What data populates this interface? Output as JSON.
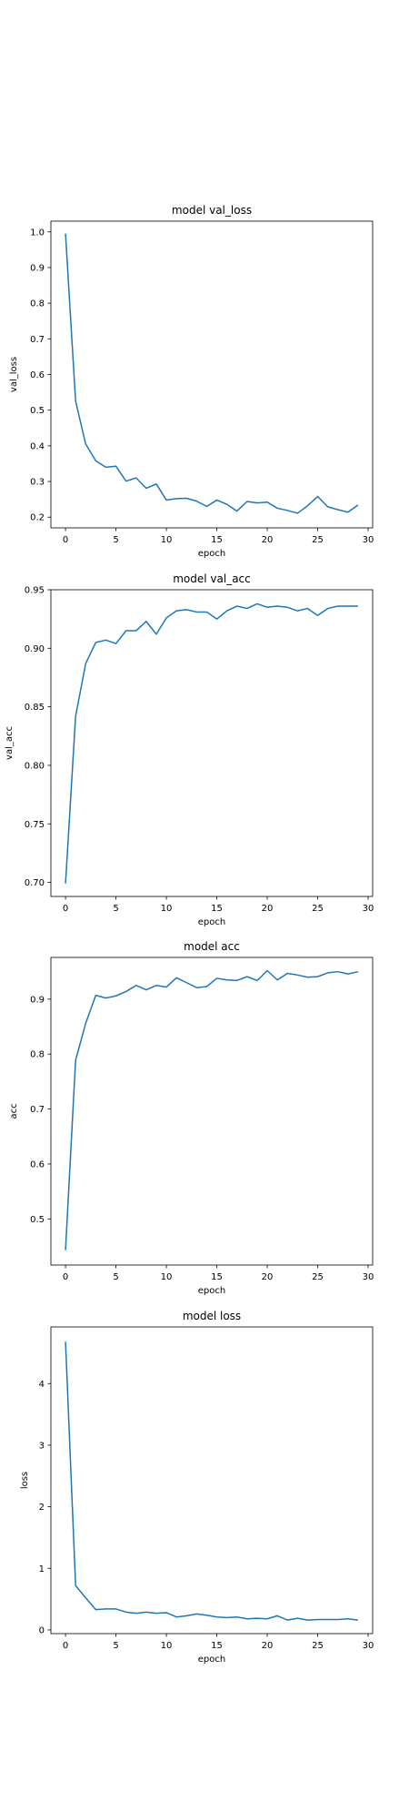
{
  "figure": {
    "background": "#ffffff",
    "line_color": "#1f77b4"
  },
  "chart_data": [
    {
      "type": "line",
      "title": "model val_loss",
      "xlabel": "epoch",
      "ylabel": "val_loss",
      "xlim": [
        -1.45,
        30.45
      ],
      "ylim": [
        0.17,
        1.03
      ],
      "xticks": [
        0,
        5,
        10,
        15,
        20,
        25,
        30
      ],
      "xtick_labels": [
        "0",
        "5",
        "10",
        "15",
        "20",
        "25",
        "30"
      ],
      "yticks": [
        0.2,
        0.3,
        0.4,
        0.5,
        0.6,
        0.7,
        0.8,
        0.9,
        1.0
      ],
      "ytick_labels": [
        "0.2",
        "0.3",
        "0.4",
        "0.5",
        "0.6",
        "0.7",
        "0.8",
        "0.9",
        "1.0"
      ],
      "grid": false,
      "series": [
        {
          "x": [
            0,
            1,
            2,
            3,
            4,
            5,
            6,
            7,
            8,
            9,
            10,
            11,
            12,
            13,
            14,
            15,
            16,
            17,
            18,
            19,
            20,
            21,
            22,
            23,
            24,
            25,
            26,
            27,
            28,
            29
          ],
          "y": [
            0.995,
            0.525,
            0.405,
            0.358,
            0.34,
            0.343,
            0.301,
            0.31,
            0.281,
            0.293,
            0.248,
            0.252,
            0.253,
            0.245,
            0.23,
            0.248,
            0.236,
            0.217,
            0.244,
            0.24,
            0.242,
            0.225,
            0.219,
            0.211,
            0.232,
            0.258,
            0.229,
            0.221,
            0.214,
            0.234
          ]
        }
      ]
    },
    {
      "type": "line",
      "title": "model val_acc",
      "xlabel": "epoch",
      "ylabel": "val_acc",
      "xlim": [
        -1.45,
        30.45
      ],
      "ylim": [
        0.688,
        0.95
      ],
      "xticks": [
        0,
        5,
        10,
        15,
        20,
        25,
        30
      ],
      "xtick_labels": [
        "0",
        "5",
        "10",
        "15",
        "20",
        "25",
        "30"
      ],
      "yticks": [
        0.7,
        0.75,
        0.8,
        0.85,
        0.9,
        0.95
      ],
      "ytick_labels": [
        "0.70",
        "0.75",
        "0.80",
        "0.85",
        "0.90",
        "0.95"
      ],
      "grid": false,
      "series": [
        {
          "x": [
            0,
            1,
            2,
            3,
            4,
            5,
            6,
            7,
            8,
            9,
            10,
            11,
            12,
            13,
            14,
            15,
            16,
            17,
            18,
            19,
            20,
            21,
            22,
            23,
            24,
            25,
            26,
            27,
            28,
            29
          ],
          "y": [
            0.699,
            0.842,
            0.887,
            0.905,
            0.907,
            0.904,
            0.915,
            0.915,
            0.923,
            0.912,
            0.926,
            0.932,
            0.933,
            0.931,
            0.931,
            0.925,
            0.932,
            0.936,
            0.934,
            0.938,
            0.935,
            0.936,
            0.935,
            0.932,
            0.934,
            0.928,
            0.934,
            0.936,
            0.936,
            0.936
          ]
        }
      ]
    },
    {
      "type": "line",
      "title": "model acc",
      "xlabel": "epoch",
      "ylabel": "acc",
      "xlim": [
        -1.45,
        30.45
      ],
      "ylim": [
        0.416,
        0.976
      ],
      "xticks": [
        0,
        5,
        10,
        15,
        20,
        25,
        30
      ],
      "xtick_labels": [
        "0",
        "5",
        "10",
        "15",
        "20",
        "25",
        "30"
      ],
      "yticks": [
        0.5,
        0.6,
        0.7,
        0.8,
        0.9
      ],
      "ytick_labels": [
        "0.5",
        "0.6",
        "0.7",
        "0.8",
        "0.9"
      ],
      "grid": false,
      "series": [
        {
          "x": [
            0,
            1,
            2,
            3,
            4,
            5,
            6,
            7,
            8,
            9,
            10,
            11,
            12,
            13,
            14,
            15,
            16,
            17,
            18,
            19,
            20,
            21,
            22,
            23,
            24,
            25,
            26,
            27,
            28,
            29
          ],
          "y": [
            0.443,
            0.789,
            0.856,
            0.907,
            0.902,
            0.906,
            0.914,
            0.925,
            0.917,
            0.925,
            0.922,
            0.939,
            0.93,
            0.921,
            0.923,
            0.938,
            0.935,
            0.934,
            0.941,
            0.934,
            0.952,
            0.935,
            0.947,
            0.944,
            0.94,
            0.941,
            0.948,
            0.95,
            0.946,
            0.95
          ]
        }
      ]
    },
    {
      "type": "line",
      "title": "model loss",
      "xlabel": "epoch",
      "ylabel": "loss",
      "xlim": [
        -1.45,
        30.45
      ],
      "ylim": [
        -0.06,
        4.92
      ],
      "xticks": [
        0,
        5,
        10,
        15,
        20,
        25,
        30
      ],
      "xtick_labels": [
        "0",
        "5",
        "10",
        "15",
        "20",
        "25",
        "30"
      ],
      "yticks": [
        0,
        1,
        2,
        3,
        4
      ],
      "ytick_labels": [
        "0",
        "1",
        "2",
        "3",
        "4"
      ],
      "grid": false,
      "series": [
        {
          "x": [
            0,
            1,
            2,
            3,
            4,
            5,
            6,
            7,
            8,
            9,
            10,
            11,
            12,
            13,
            14,
            15,
            16,
            17,
            18,
            19,
            20,
            21,
            22,
            23,
            24,
            25,
            26,
            27,
            28,
            29
          ],
          "y": [
            4.68,
            0.72,
            0.52,
            0.33,
            0.34,
            0.34,
            0.29,
            0.27,
            0.29,
            0.27,
            0.28,
            0.21,
            0.23,
            0.26,
            0.24,
            0.21,
            0.2,
            0.21,
            0.18,
            0.19,
            0.18,
            0.23,
            0.16,
            0.19,
            0.16,
            0.17,
            0.17,
            0.17,
            0.18,
            0.16
          ]
        }
      ]
    }
  ]
}
